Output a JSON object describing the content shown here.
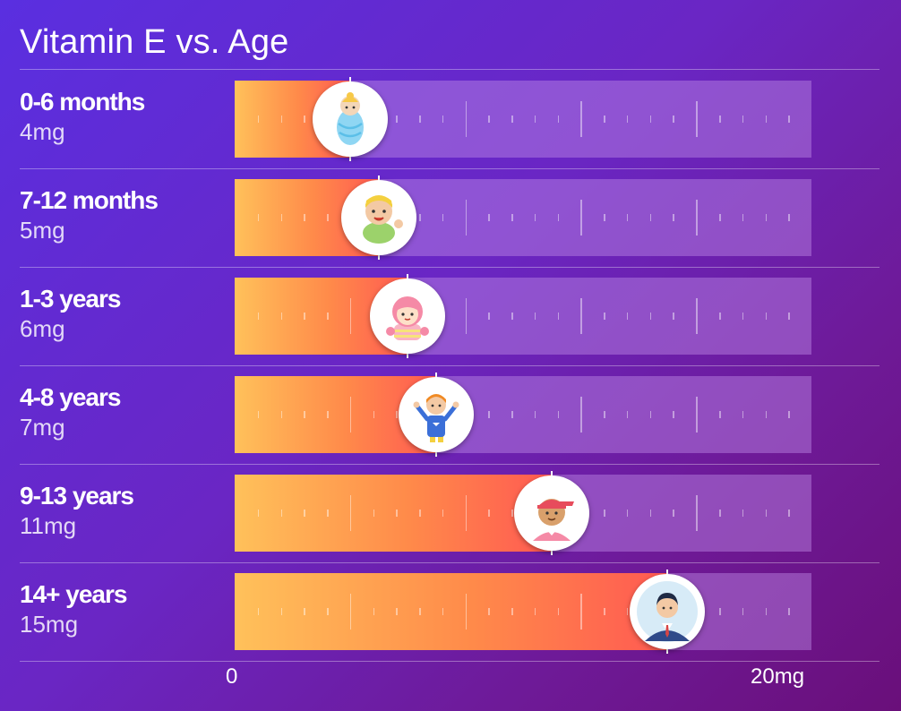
{
  "title": "Vitamin E vs. Age",
  "chart_data": {
    "type": "bar",
    "title": "Vitamin E vs. Age",
    "categories": [
      "0-6 months",
      "7-12 months",
      "1-3 years",
      "4-8 years",
      "9-13 years",
      "14+ years"
    ],
    "value_labels": [
      "4mg",
      "5mg",
      "6mg",
      "7mg",
      "11mg",
      "15mg"
    ],
    "values": [
      4,
      5,
      6,
      7,
      11,
      15
    ],
    "xlim": [
      0,
      20
    ],
    "x_min_label": "0",
    "x_max_label": "20mg",
    "grid": true,
    "icons": [
      "swaddled-baby-icon",
      "toddler-boy-icon",
      "little-girl-icon",
      "child-icon",
      "teen-boy-icon",
      "businessman-icon"
    ]
  },
  "colors": {
    "fill_start": "#ffc15a",
    "fill_end": "#ff5a52",
    "background": "#5a2fe0"
  }
}
